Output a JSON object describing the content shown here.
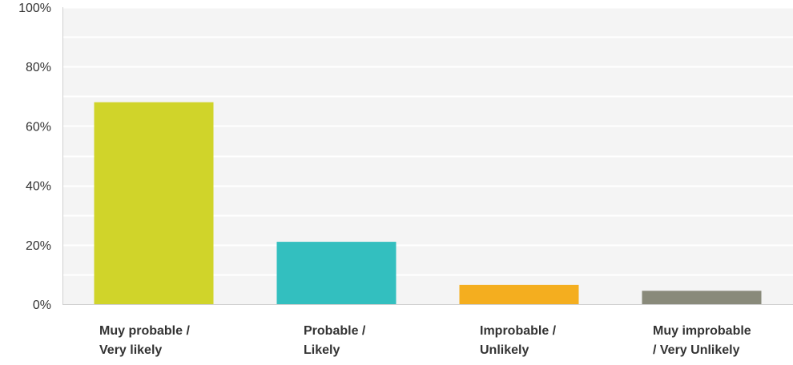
{
  "chart_data": {
    "type": "bar",
    "categories": [
      [
        "Muy probable /",
        "Very likely"
      ],
      [
        "Probable /",
        "Likely"
      ],
      [
        "Improbable /",
        "Unlikely"
      ],
      [
        "Muy improbable",
        "/ Very Unlikely"
      ]
    ],
    "values": [
      68,
      21,
      6.5,
      4.5
    ],
    "colors": [
      "#d0d42a",
      "#33bfbf",
      "#f4ae1f",
      "#898a7a"
    ],
    "ylim": [
      0,
      100
    ],
    "yticks": [
      "0%",
      "20%",
      "40%",
      "60%",
      "80%",
      "100%"
    ],
    "grid": true,
    "title": "",
    "xlabel": "",
    "ylabel": ""
  }
}
